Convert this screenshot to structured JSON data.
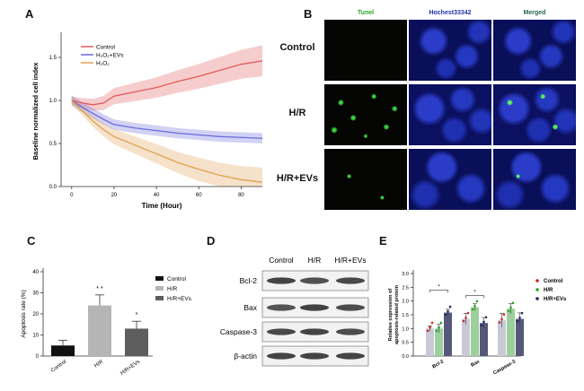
{
  "panels": {
    "A": {
      "letter": "A",
      "ylabel": "Baseline normalized cell index",
      "xlabel": "Time (Hour)",
      "legend": [
        {
          "label": "Control",
          "color": "#e05a5a"
        },
        {
          "label": "H₂O₂+EVs",
          "color": "#6a6adf"
        },
        {
          "label": "H₂O₂",
          "color": "#e0a050"
        }
      ],
      "x_ticks": [
        "0",
        "20",
        "40",
        "60",
        "80"
      ],
      "y_ticks": [
        "0.0",
        "0.5",
        "1.0",
        "1.5"
      ]
    },
    "B": {
      "letter": "B",
      "col_headers": [
        {
          "label": "Tunel",
          "color": "#22aa22"
        },
        {
          "label": "Hochest33342",
          "color": "#2233aa"
        },
        {
          "label": "Merged",
          "color": "#226655"
        }
      ],
      "row_labels": [
        "Control",
        "H/R",
        "H/R+EVs"
      ]
    },
    "C": {
      "letter": "C",
      "ylabel": "Apoptosis rate (%)",
      "y_ticks": [
        "0",
        "10",
        "20",
        "30",
        "40"
      ],
      "categories": [
        "Control",
        "H/R",
        "H/R+EVs"
      ],
      "sig_marks": [
        "* *",
        "*"
      ],
      "legend": [
        {
          "label": "Control",
          "color": "#111111"
        },
        {
          "label": "H/R",
          "color": "#b5b5b5"
        },
        {
          "label": "H/R+EVs",
          "color": "#5e5e5e"
        }
      ]
    },
    "D": {
      "letter": "D",
      "lanes": [
        "Control",
        "H/R",
        "H/R+EVs"
      ],
      "proteins": [
        "Bcl-2",
        "Bax",
        "Caspase-3",
        "β-actin"
      ]
    },
    "E": {
      "letter": "E",
      "ylabel": "Relative expression of apoptosis-related protein",
      "y_ticks": [
        "0.0",
        "0.5",
        "1.0",
        "1.5",
        "2.0",
        "2.5",
        "3.0"
      ],
      "groups": [
        "Bcl-2",
        "Bax",
        "Caspase-3"
      ],
      "sig_marks": [
        "*",
        "*"
      ],
      "legend": [
        {
          "label": "Control",
          "color": "#cc2222"
        },
        {
          "label": "H/R",
          "color": "#22aa22"
        },
        {
          "label": "H/R+EVs",
          "color": "#222266"
        }
      ]
    }
  },
  "chart_data": [
    {
      "type": "line",
      "panel": "A",
      "xlabel": "Time (Hour)",
      "ylabel": "Baseline normalized cell index",
      "xlim": [
        -5,
        90
      ],
      "ylim": [
        0,
        1.75
      ],
      "x": [
        0,
        5,
        10,
        15,
        20,
        30,
        40,
        50,
        60,
        70,
        80,
        90
      ],
      "series": [
        {
          "name": "Control",
          "values": [
            1.0,
            0.97,
            0.95,
            0.97,
            1.05,
            1.1,
            1.15,
            1.22,
            1.28,
            1.35,
            1.42,
            1.46
          ]
        },
        {
          "name": "H₂O₂+EVs",
          "values": [
            1.0,
            0.92,
            0.85,
            0.78,
            0.72,
            0.68,
            0.65,
            0.62,
            0.6,
            0.58,
            0.57,
            0.56
          ]
        },
        {
          "name": "H₂O₂",
          "values": [
            1.0,
            0.88,
            0.76,
            0.66,
            0.58,
            0.48,
            0.38,
            0.28,
            0.2,
            0.13,
            0.08,
            0.05
          ]
        }
      ]
    },
    {
      "type": "bar",
      "panel": "C",
      "ylabel": "Apoptosis rate (%)",
      "ylim": [
        0,
        40
      ],
      "categories": [
        "Control",
        "H/R",
        "H/R+EVs"
      ],
      "values": [
        5,
        24,
        13
      ],
      "errors": [
        2.5,
        5,
        3.5
      ]
    },
    {
      "type": "bar",
      "panel": "E",
      "ylabel": "Relative expression of apoptosis-related protein",
      "ylim": [
        0,
        3.0
      ],
      "categories": [
        "Bcl-2",
        "Bax",
        "Caspase-3"
      ],
      "series": [
        {
          "name": "Control",
          "values": [
            1.0,
            1.35,
            1.3
          ],
          "errors": [
            0.1,
            0.2,
            0.25
          ]
        },
        {
          "name": "H/R",
          "values": [
            1.0,
            1.78,
            1.72
          ],
          "errors": [
            0.15,
            0.12,
            0.18
          ]
        },
        {
          "name": "H/R+EVs",
          "values": [
            1.58,
            1.2,
            1.35
          ],
          "errors": [
            0.12,
            0.2,
            0.22
          ]
        }
      ]
    }
  ]
}
